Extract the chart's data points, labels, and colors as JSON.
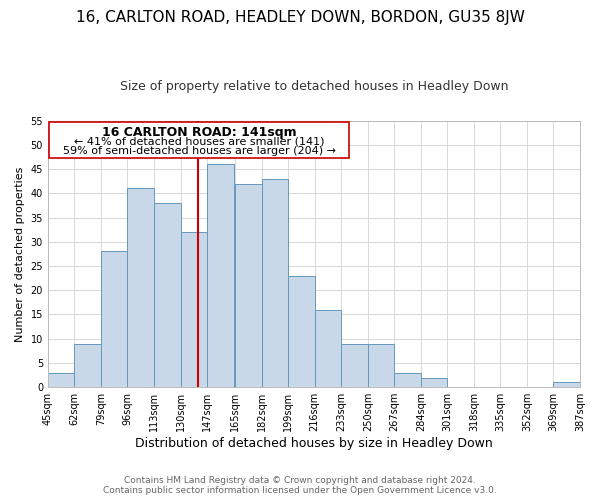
{
  "title": "16, CARLTON ROAD, HEADLEY DOWN, BORDON, GU35 8JW",
  "subtitle": "Size of property relative to detached houses in Headley Down",
  "xlabel": "Distribution of detached houses by size in Headley Down",
  "ylabel": "Number of detached properties",
  "bar_left_edges": [
    45,
    62,
    79,
    96,
    113,
    130,
    147,
    165,
    182,
    199,
    216,
    233,
    250,
    267,
    284,
    301,
    318,
    335,
    352,
    369
  ],
  "bar_heights": [
    3,
    9,
    28,
    41,
    38,
    32,
    46,
    42,
    43,
    23,
    16,
    9,
    9,
    3,
    2,
    0,
    0,
    0,
    0,
    1
  ],
  "bin_width": 17,
  "bar_color": "#c8d8e8",
  "bar_edge_color": "#6699bb",
  "property_line_x": 141,
  "ylim": [
    0,
    55
  ],
  "yticks": [
    0,
    5,
    10,
    15,
    20,
    25,
    30,
    35,
    40,
    45,
    50,
    55
  ],
  "x_tick_labels": [
    "45sqm",
    "62sqm",
    "79sqm",
    "96sqm",
    "113sqm",
    "130sqm",
    "147sqm",
    "165sqm",
    "182sqm",
    "199sqm",
    "216sqm",
    "233sqm",
    "250sqm",
    "267sqm",
    "284sqm",
    "301sqm",
    "318sqm",
    "335sqm",
    "352sqm",
    "369sqm",
    "387sqm"
  ],
  "annotation_title": "16 CARLTON ROAD: 141sqm",
  "annotation_line1": "← 41% of detached houses are smaller (141)",
  "annotation_line2": "59% of semi-detached houses are larger (204) →",
  "footer_line1": "Contains HM Land Registry data © Crown copyright and database right 2024.",
  "footer_line2": "Contains public sector information licensed under the Open Government Licence v3.0.",
  "background_color": "#ffffff",
  "grid_color": "#d8d8d8",
  "line_color": "#cc0000",
  "annotation_box_edge_color": "#cc0000",
  "title_fontsize": 11,
  "subtitle_fontsize": 9,
  "xlabel_fontsize": 9,
  "ylabel_fontsize": 8,
  "tick_fontsize": 7,
  "annotation_title_fontsize": 9,
  "annotation_line_fontsize": 8,
  "footer_fontsize": 6.5
}
